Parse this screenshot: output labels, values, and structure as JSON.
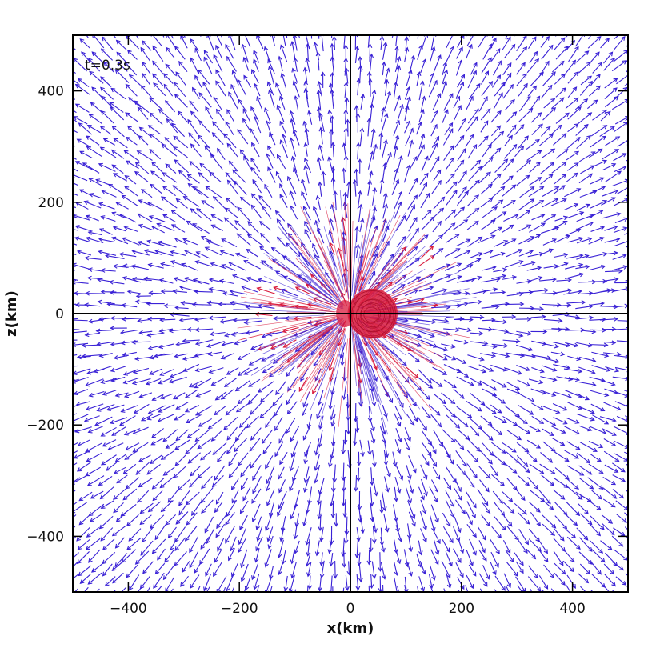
{
  "chart_data": {
    "type": "vector-field",
    "annotation": "t=0.3s",
    "xlabel": "x(km)",
    "ylabel": "z(km)",
    "xlim": [
      -500,
      500
    ],
    "ylim": [
      -500,
      500
    ],
    "x_ticks": [
      -400,
      -200,
      0,
      200,
      400
    ],
    "y_ticks": [
      -400,
      -200,
      0,
      200,
      400
    ],
    "x_tick_labels": [
      "−400",
      "−200",
      "0",
      "200",
      "400"
    ],
    "y_tick_labels": [
      "−400",
      "−200",
      "0",
      "200",
      "400"
    ],
    "reference_lines": {
      "x": 0,
      "z": 0
    },
    "field": {
      "pattern": "radially outward from origin",
      "outer_color": "#3a22d6",
      "inner_color": "#d81a3c"
    },
    "core": {
      "center": [
        40,
        0
      ],
      "radius": 45,
      "color": "#d81a3c"
    },
    "grid": false
  }
}
